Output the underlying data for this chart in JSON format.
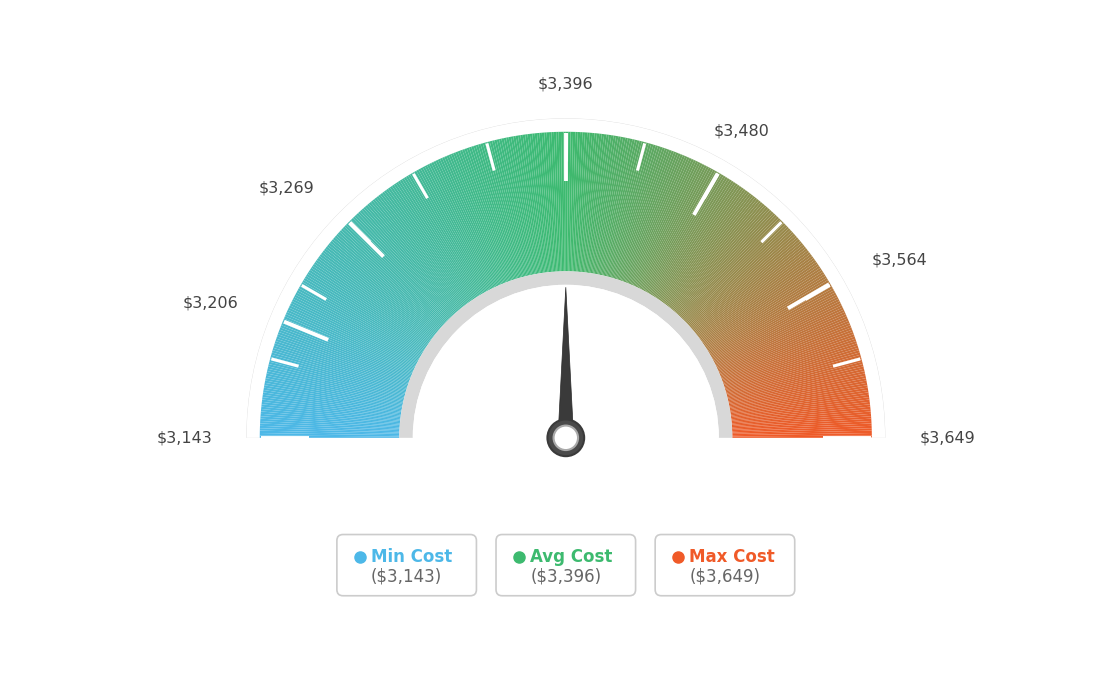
{
  "min_val": 3143,
  "max_val": 3649,
  "avg_val": 3396,
  "tick_labels": [
    "$3,143",
    "$3,206",
    "$3,269",
    "$3,396",
    "$3,480",
    "$3,564",
    "$3,649"
  ],
  "tick_values": [
    3143,
    3206,
    3269,
    3396,
    3480,
    3564,
    3649
  ],
  "legend": [
    {
      "label": "Min Cost",
      "value": "($3,143)",
      "color": "#4db8e8"
    },
    {
      "label": "Avg Cost",
      "value": "($3,396)",
      "color": "#3dba6f"
    },
    {
      "label": "Max Cost",
      "value": "($3,649)",
      "color": "#f05a28"
    }
  ],
  "background_color": "#ffffff",
  "needle_value": 3396,
  "color_stops": [
    [
      0.0,
      [
        77,
        184,
        232
      ]
    ],
    [
      0.5,
      [
        61,
        186,
        111
      ]
    ],
    [
      1.0,
      [
        240,
        90,
        40
      ]
    ]
  ]
}
